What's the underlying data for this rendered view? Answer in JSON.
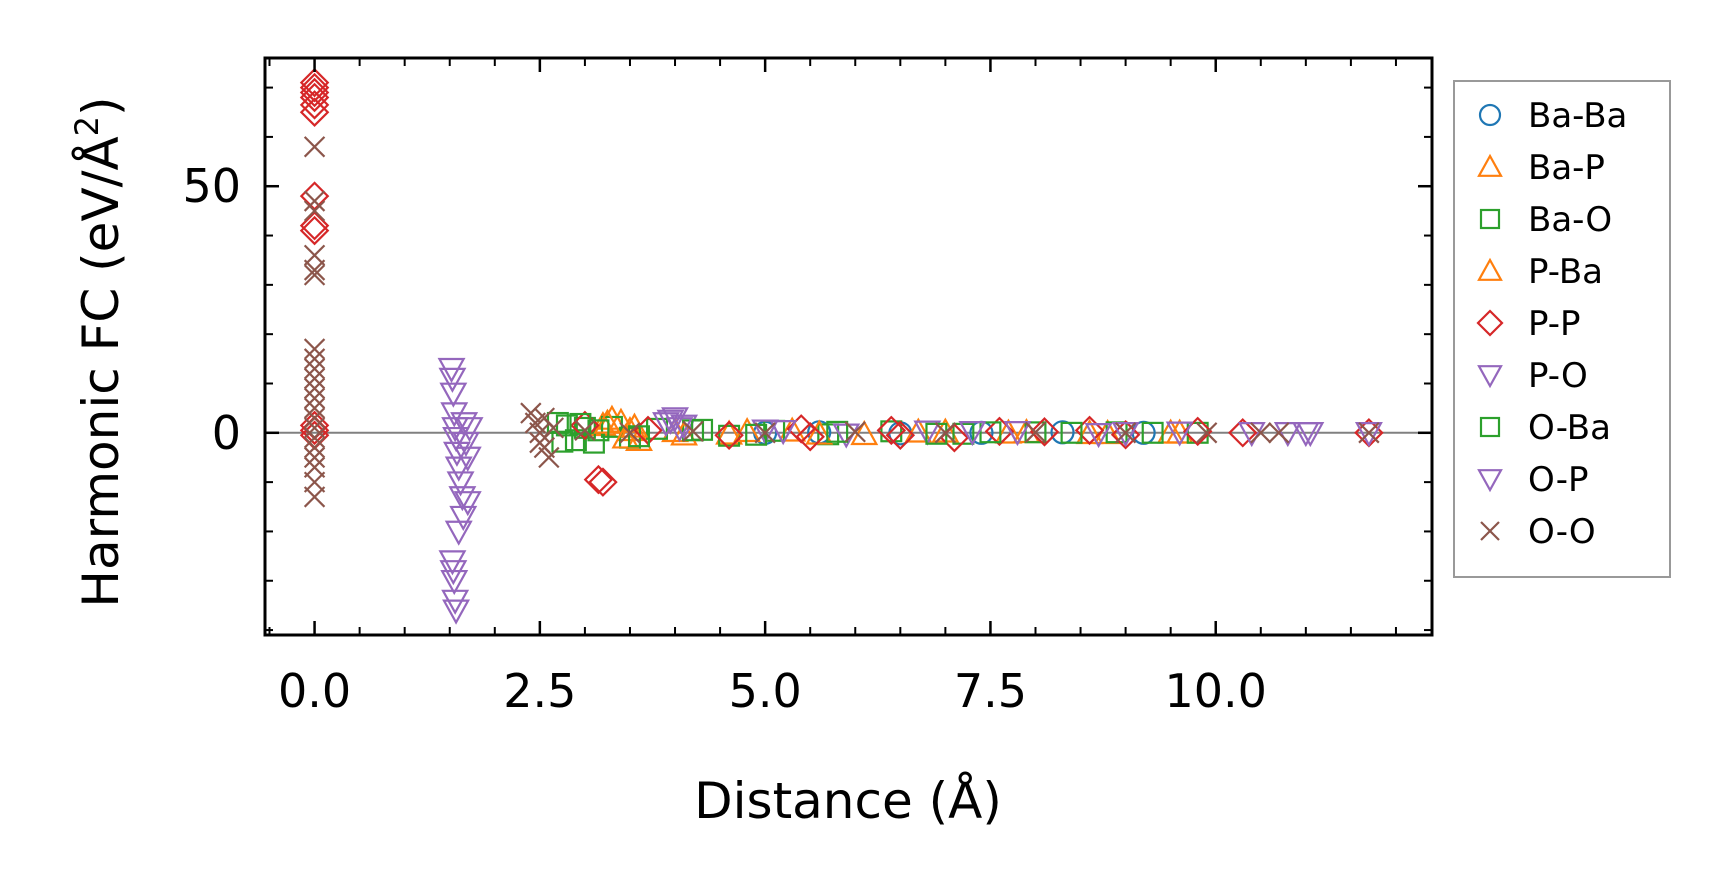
{
  "chart_data": {
    "type": "scatter",
    "title": "",
    "xlabel": "Distance (Å)",
    "ylabel": "Harmonic FC (eV/Å",
    "ylabel_superscript": "2",
    "ylabel_close": ")",
    "xlim": [
      -0.55,
      12.4
    ],
    "ylim": [
      -41,
      76
    ],
    "x_ticks": [
      0.0,
      2.5,
      5.0,
      7.5,
      10.0
    ],
    "x_tick_labels": [
      "0.0",
      "2.5",
      "5.0",
      "7.5",
      "10.0"
    ],
    "y_ticks": [
      0,
      50
    ],
    "y_tick_labels": [
      "0",
      "50"
    ],
    "reference_line_y": 0,
    "legend_position": "outside-right",
    "series": [
      {
        "name": "Ba-Ba",
        "marker": "circle",
        "color": "#1f77b4",
        "x": [
          5.0,
          5.6,
          6.5,
          7.4,
          8.3,
          9.2
        ],
        "y": [
          0.0,
          0.1,
          -0.1,
          0.0,
          0.1,
          0.0
        ]
      },
      {
        "name": "Ba-P",
        "marker": "triangle-up",
        "color": "#ff7f0e",
        "x": [
          3.2,
          3.3,
          3.4,
          3.5,
          3.6,
          4.0,
          4.6,
          5.3,
          6.1,
          7.0,
          7.9,
          8.8,
          9.6
        ],
        "y": [
          1.5,
          2.8,
          2.2,
          0.5,
          -1.5,
          0.3,
          -0.2,
          0.4,
          -0.3,
          0.2,
          0.1,
          -0.1,
          0.0
        ]
      },
      {
        "name": "Ba-O",
        "marker": "square",
        "color": "#2ca02c",
        "x": [
          2.7,
          2.8,
          2.9,
          3.0,
          3.1,
          3.3,
          3.5,
          3.8,
          4.2,
          4.6,
          5.1,
          5.7,
          6.4,
          7.2,
          8.0,
          8.9,
          9.8
        ],
        "y": [
          2.0,
          1.5,
          -1.5,
          1.0,
          -2.0,
          1.2,
          -1.0,
          0.8,
          0.5,
          -0.6,
          0.4,
          -0.3,
          0.3,
          -0.2,
          0.1,
          0.1,
          0.0
        ]
      },
      {
        "name": "P-Ba",
        "marker": "triangle-up",
        "color": "#ff7f0e",
        "x": [
          3.25,
          3.45,
          3.55,
          4.1,
          4.8,
          5.6,
          6.7,
          7.7,
          8.6,
          9.5
        ],
        "y": [
          2.0,
          -1.0,
          1.2,
          -0.4,
          0.3,
          -0.2,
          0.2,
          0.0,
          -0.1,
          0.0
        ]
      },
      {
        "name": "P-P",
        "marker": "diamond",
        "color": "#d62728",
        "x": [
          0.0,
          0.0,
          0.0,
          0.0,
          0.0,
          0.0,
          0.0,
          0.0,
          0.0,
          0.0,
          0.0,
          0.0,
          3.15,
          3.2,
          3.0,
          3.7,
          4.6,
          5.4,
          5.5,
          6.4,
          6.5,
          7.1,
          7.6,
          8.1,
          8.6,
          9.0,
          9.8,
          10.3,
          11.7
        ],
        "y": [
          71,
          70,
          69,
          68,
          66.5,
          65,
          48,
          42,
          41,
          1.5,
          0.5,
          -0.5,
          -9.5,
          -10,
          1.5,
          0.5,
          -0.5,
          0.8,
          -0.8,
          0.5,
          -0.5,
          -1.0,
          0.3,
          0.2,
          0.5,
          -0.4,
          0.3,
          0.0,
          0.0
        ]
      },
      {
        "name": "P-O",
        "marker": "triangle-down",
        "color": "#9467bd",
        "x": [
          1.52,
          1.53,
          1.54,
          1.55,
          1.56,
          1.57,
          1.58,
          1.6,
          1.62,
          1.64,
          1.66,
          1.68,
          1.7,
          1.72,
          3.9,
          4.0,
          4.1,
          5.0,
          5.9,
          6.8,
          7.8,
          8.7,
          9.6,
          10.4,
          10.8,
          11.0
        ],
        "y": [
          13,
          11,
          8,
          4,
          1,
          -1,
          -4,
          -7,
          -10,
          -13,
          2,
          -2,
          -5,
          1,
          2.0,
          3.0,
          1.5,
          0.5,
          -0.3,
          0.3,
          0.2,
          -0.2,
          0.1,
          0.0,
          0.0,
          0.0
        ]
      },
      {
        "name": "O-Ba",
        "marker": "square",
        "color": "#2ca02c",
        "x": [
          2.75,
          2.95,
          3.15,
          3.6,
          4.3,
          4.9,
          5.8,
          6.9,
          7.5,
          8.4,
          9.3
        ],
        "y": [
          -1.8,
          1.8,
          0.5,
          -0.7,
          0.6,
          -0.4,
          0.2,
          -0.2,
          0.1,
          0.0,
          0.0
        ]
      },
      {
        "name": "O-P",
        "marker": "triangle-down",
        "color": "#9467bd",
        "x": [
          1.53,
          1.54,
          1.55,
          1.56,
          1.57,
          1.6,
          1.65,
          1.7,
          3.95,
          4.05,
          5.2,
          7.3,
          9.0,
          11.05,
          11.7
        ],
        "y": [
          -26,
          -28,
          -30,
          -34,
          -36,
          -20,
          -17,
          -14,
          2.5,
          1.0,
          0.4,
          0.2,
          0.0,
          0.0,
          0.0
        ]
      },
      {
        "name": "O-O",
        "marker": "x",
        "color": "#8c564b",
        "x": [
          0.0,
          0.0,
          0.0,
          0.0,
          0.0,
          0.0,
          0.0,
          0.0,
          0.0,
          0.0,
          0.0,
          0.0,
          0.0,
          0.0,
          0.0,
          0.0,
          0.0,
          0.0,
          0.0,
          0.0,
          0.0,
          2.4,
          2.45,
          2.5,
          2.55,
          2.6,
          2.65,
          2.5,
          2.55,
          3.0,
          3.5,
          4.2,
          5.0,
          6.0,
          7.0,
          8.0,
          9.0,
          9.9,
          10.5,
          10.7,
          11.7
        ],
        "y": [
          58,
          47,
          45,
          36,
          33,
          32,
          17,
          15,
          13,
          11,
          9,
          7,
          5,
          3,
          1,
          -1,
          -3,
          -5,
          -7,
          -10,
          -13,
          4,
          2,
          -2,
          -3,
          -5,
          1,
          0,
          3,
          0.5,
          0.0,
          0.3,
          0.0,
          0.2,
          0.0,
          0.1,
          0.0,
          0.0,
          0.0,
          0.0,
          0.0
        ]
      }
    ]
  }
}
